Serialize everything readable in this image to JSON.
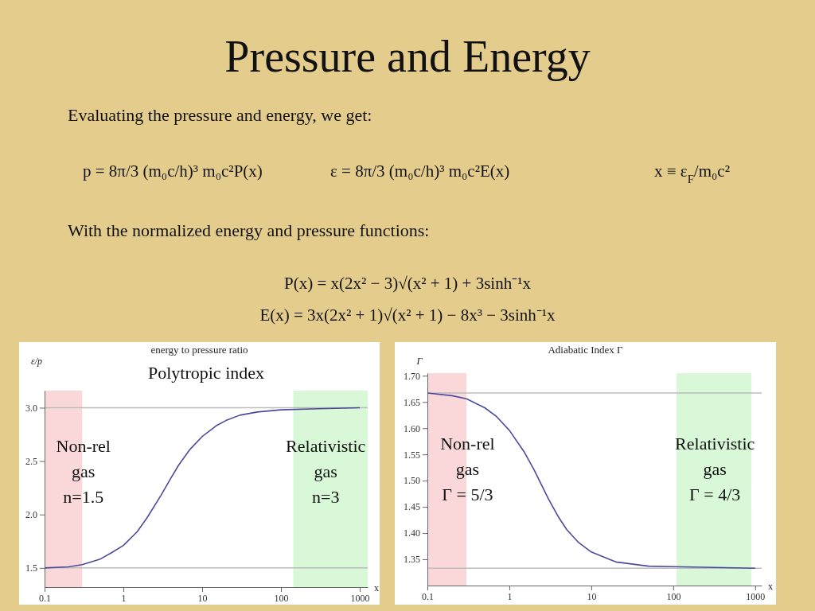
{
  "chart_data": [
    {
      "type": "other",
      "title": "Pressure and Energy",
      "annotations": [
        "Evaluating the pressure and energy, we get:",
        "p = 8π/3 (m₀c/h)³ m₀c²P(x)",
        "ε = 8π/3 (m₀c/h)³ m₀c²E(x)",
        "x ≡ ε$_{F}$/m₀c²",
        "With the normalized energy and pressure functions:",
        "P(x) = x(2x² − 3)√(x² + 1) + 3sinh⁻¹x",
        "E(x) = 3x(2x² + 1)√(x² + 1) − 8x³ − 3sinh⁻¹x"
      ]
    },
    {
      "type": "line",
      "title": "energy to pressure ratio",
      "xlabel": "x",
      "ylabel": "ε/p",
      "log": "x",
      "xlim": [
        0.1,
        1260
      ],
      "xticks": [
        0.1,
        1,
        10,
        100,
        1000
      ],
      "ylim": [
        1.32,
        3.16
      ],
      "yticks": [
        {
          "value": 1.5,
          "label": "1.5"
        },
        {
          "value": 2,
          "label": "2.0"
        },
        {
          "value": 2.5,
          "label": "2.5"
        },
        {
          "value": 3,
          "label": "3.0"
        }
      ],
      "x": [
        0.1,
        0.2,
        0.3,
        0.5,
        0.7,
        1,
        1.5,
        2,
        3,
        4,
        5,
        7,
        10,
        15,
        20,
        30,
        50,
        100,
        300,
        1000
      ],
      "series": [
        {
          "color": "#4b4b9b",
          "values": [
            1.5,
            1.51,
            1.53,
            1.58,
            1.64,
            1.71,
            1.84,
            1.97,
            2.18,
            2.34,
            2.46,
            2.61,
            2.73,
            2.83,
            2.88,
            2.93,
            2.96,
            2.98,
            2.99,
            3.0
          ]
        }
      ],
      "ref_lines": [
        {
          "axis": "y",
          "value": 3,
          "color": "#bbbbbb"
        },
        {
          "axis": "y",
          "value": 1.5,
          "color": "#bbbbbb"
        }
      ],
      "bands": [
        {
          "axis": "x",
          "from": 0.1,
          "to": 0.3,
          "color": "#fad8da"
        },
        {
          "axis": "x",
          "from": 143,
          "to": 1260,
          "color": "#d8f8d8"
        }
      ],
      "annotations": [
        "Polytropic index",
        "Non-rel\ngas\nn=1.5",
        "Relativistic\ngas\nn=3"
      ]
    },
    {
      "type": "line",
      "title": "Adiabatic Index Γ",
      "xlabel": "x",
      "ylabel": "Γ",
      "log": "x",
      "xlim": [
        0.1,
        1200
      ],
      "xticks": [
        0.1,
        1,
        10,
        100,
        1000
      ],
      "ylim": [
        1.3,
        1.705
      ],
      "yticks": [
        {
          "value": 1.35,
          "label": "1.35"
        },
        {
          "value": 1.4,
          "label": "1.40"
        },
        {
          "value": 1.45,
          "label": "1.45"
        },
        {
          "value": 1.5,
          "label": "1.50"
        },
        {
          "value": 1.55,
          "label": "1.55"
        },
        {
          "value": 1.6,
          "label": "1.60"
        },
        {
          "value": 1.65,
          "label": "1.65"
        },
        {
          "value": 1.7,
          "label": "1.70"
        }
      ],
      "x": [
        0.1,
        0.2,
        0.3,
        0.5,
        0.7,
        1,
        1.5,
        2,
        3,
        4,
        5,
        7,
        10,
        20,
        50,
        100,
        1000
      ],
      "series": [
        {
          "color": "#4b4b9b",
          "values": [
            1.667,
            1.662,
            1.656,
            1.639,
            1.622,
            1.596,
            1.556,
            1.521,
            1.465,
            1.43,
            1.407,
            1.382,
            1.364,
            1.345,
            1.337,
            1.336,
            1.333
          ]
        }
      ],
      "ref_lines": [
        {
          "axis": "y",
          "value": 1.667,
          "color": "#bbbbbb"
        },
        {
          "axis": "y",
          "value": 1.333,
          "color": "#bbbbbb"
        }
      ],
      "bands": [
        {
          "axis": "x",
          "from": 0.1,
          "to": 0.3,
          "color": "#fad8da"
        },
        {
          "axis": "x",
          "from": 110,
          "to": 900,
          "color": "#d8f8d8"
        }
      ],
      "annotations": [
        "Non-rel\ngas\nΓ = 5/3",
        "Relativistic\ngas\nΓ = 4/3"
      ]
    }
  ]
}
